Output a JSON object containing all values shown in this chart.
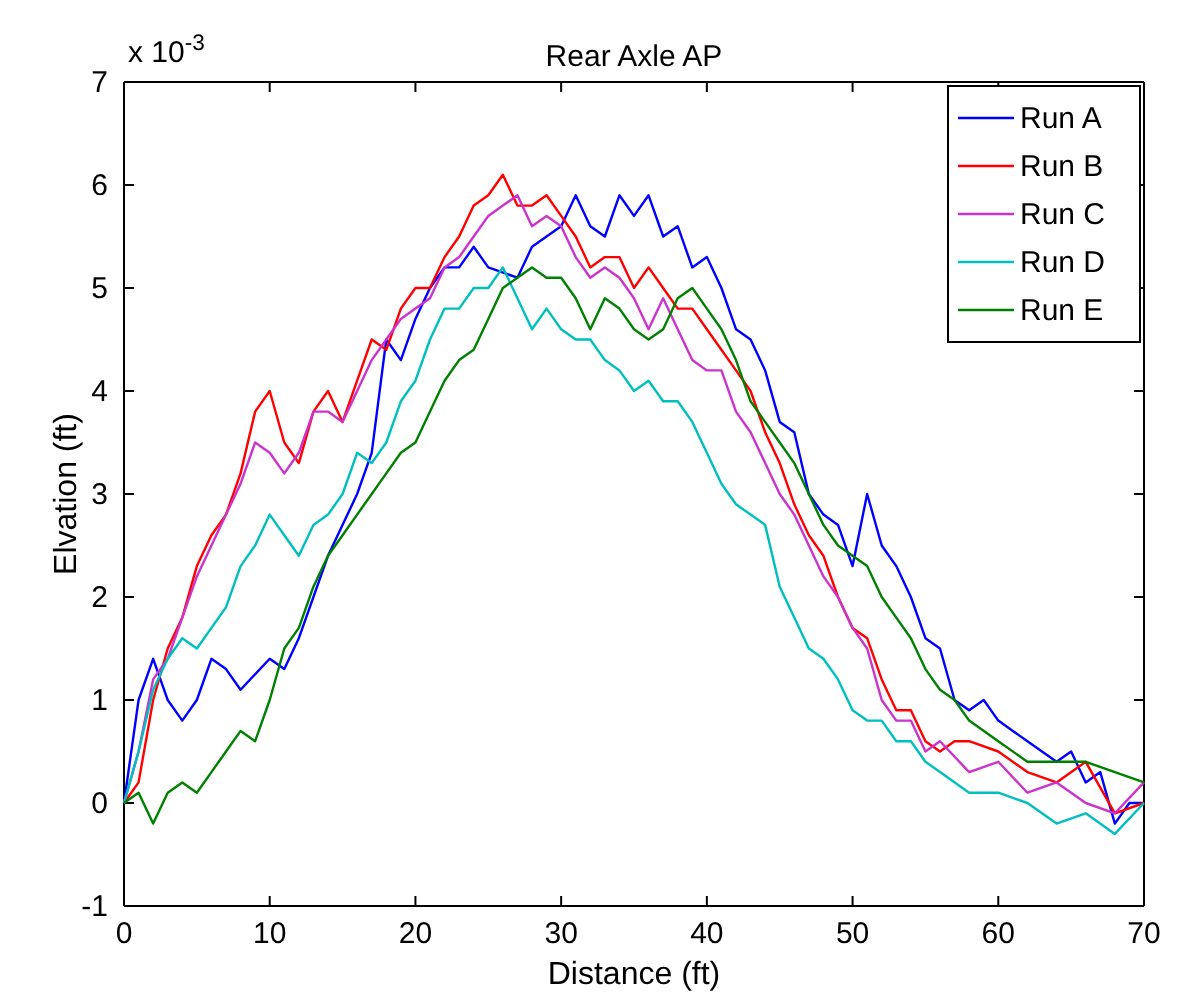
{
  "chart_data": {
    "type": "line",
    "title": "Rear Axle AP",
    "xlabel": "Distance (ft)",
    "ylabel": "Elvation (ft)",
    "annotations": [
      "x 10$^{-3}$"
    ],
    "xlim": [
      0,
      70
    ],
    "xticks": [
      0,
      10,
      20,
      30,
      40,
      50,
      60,
      70
    ],
    "ylim": [
      -1,
      7
    ],
    "yticks": [
      -1,
      0,
      1,
      2,
      3,
      4,
      5,
      6,
      7
    ],
    "grid": false,
    "legend": "top right",
    "marker": "none",
    "line_style": "solid",
    "series": [
      {
        "name": "Run A",
        "color": "#0000ff",
        "x": [
          0,
          1,
          2,
          3,
          4,
          5,
          6,
          7,
          8,
          10,
          11,
          12,
          13,
          14,
          16,
          17,
          18,
          19,
          20,
          21,
          22,
          23,
          24,
          25,
          27,
          28,
          30,
          31,
          32,
          33,
          34,
          35,
          36,
          37,
          38,
          39,
          40,
          41,
          42,
          43,
          44,
          45,
          46,
          47,
          48,
          49,
          50,
          51,
          52,
          53,
          54,
          55,
          56,
          57,
          58,
          59,
          60,
          61,
          62,
          63,
          64,
          65,
          66,
          67,
          68,
          69,
          70
        ],
        "values": [
          0,
          1.0,
          1.4,
          1.0,
          0.8,
          1.0,
          1.4,
          1.3,
          1.1,
          1.4,
          1.3,
          1.6,
          2.0,
          2.4,
          3.0,
          3.4,
          4.5,
          4.3,
          4.7,
          5.0,
          5.2,
          5.2,
          5.4,
          5.2,
          5.1,
          5.4,
          5.6,
          5.9,
          5.6,
          5.5,
          5.9,
          5.7,
          5.9,
          5.5,
          5.6,
          5.2,
          5.3,
          5.0,
          4.6,
          4.5,
          4.2,
          3.7,
          3.6,
          3.0,
          2.8,
          2.7,
          2.3,
          3.0,
          2.5,
          2.3,
          2.0,
          1.6,
          1.5,
          1.0,
          0.9,
          1.0,
          0.8,
          0.7,
          0.6,
          0.5,
          0.4,
          0.5,
          0.2,
          0.3,
          -0.2,
          0.0,
          0.0
        ]
      },
      {
        "name": "Run B",
        "color": "#ff0000",
        "x": [
          0,
          1,
          2,
          3,
          4,
          5,
          6,
          7,
          8,
          9,
          10,
          11,
          12,
          13,
          14,
          15,
          16,
          17,
          18,
          19,
          20,
          21,
          22,
          23,
          24,
          25,
          26,
          27,
          28,
          29,
          30,
          31,
          32,
          33,
          34,
          35,
          36,
          37,
          38,
          39,
          40,
          41,
          42,
          43,
          44,
          45,
          46,
          47,
          48,
          49,
          50,
          51,
          52,
          53,
          54,
          55,
          56,
          57,
          58,
          60,
          62,
          64,
          66,
          68,
          70
        ],
        "values": [
          0,
          0.2,
          1.0,
          1.5,
          1.8,
          2.3,
          2.6,
          2.8,
          3.2,
          3.8,
          4.0,
          3.5,
          3.3,
          3.8,
          4.0,
          3.7,
          4.1,
          4.5,
          4.4,
          4.8,
          5.0,
          5.0,
          5.3,
          5.5,
          5.8,
          5.9,
          6.1,
          5.8,
          5.8,
          5.9,
          5.7,
          5.5,
          5.2,
          5.3,
          5.3,
          5.0,
          5.2,
          5.0,
          4.8,
          4.8,
          4.6,
          4.4,
          4.2,
          4.0,
          3.6,
          3.3,
          2.9,
          2.6,
          2.4,
          2.0,
          1.7,
          1.6,
          1.2,
          0.9,
          0.9,
          0.6,
          0.5,
          0.6,
          0.6,
          0.5,
          0.3,
          0.2,
          0.4,
          -0.1,
          0.0
        ]
      },
      {
        "name": "Run C",
        "color": "#cc33cc",
        "x": [
          0,
          1,
          2,
          3,
          4,
          5,
          6,
          7,
          8,
          9,
          10,
          11,
          12,
          13,
          14,
          15,
          16,
          17,
          18,
          19,
          20,
          21,
          22,
          23,
          24,
          25,
          26,
          27,
          28,
          29,
          30,
          31,
          32,
          33,
          34,
          35,
          36,
          37,
          38,
          39,
          40,
          41,
          42,
          43,
          44,
          45,
          46,
          47,
          48,
          49,
          50,
          51,
          52,
          53,
          54,
          55,
          56,
          58,
          60,
          62,
          64,
          66,
          68,
          70
        ],
        "values": [
          0,
          0.5,
          1.2,
          1.4,
          1.8,
          2.2,
          2.5,
          2.8,
          3.1,
          3.5,
          3.4,
          3.2,
          3.4,
          3.8,
          3.8,
          3.7,
          4.0,
          4.3,
          4.5,
          4.7,
          4.8,
          4.9,
          5.2,
          5.3,
          5.5,
          5.7,
          5.8,
          5.9,
          5.6,
          5.7,
          5.6,
          5.3,
          5.1,
          5.2,
          5.1,
          4.9,
          4.6,
          4.9,
          4.6,
          4.3,
          4.2,
          4.2,
          3.8,
          3.6,
          3.3,
          3.0,
          2.8,
          2.5,
          2.2,
          2.0,
          1.7,
          1.5,
          1.0,
          0.8,
          0.8,
          0.5,
          0.6,
          0.3,
          0.4,
          0.1,
          0.2,
          0.0,
          -0.1,
          0.2
        ]
      },
      {
        "name": "Run D",
        "color": "#00bfbf",
        "x": [
          0,
          1,
          2,
          3,
          4,
          5,
          6,
          7,
          8,
          9,
          10,
          11,
          12,
          13,
          14,
          15,
          16,
          17,
          18,
          19,
          20,
          21,
          22,
          23,
          24,
          25,
          26,
          27,
          28,
          29,
          30,
          31,
          32,
          33,
          34,
          35,
          36,
          37,
          38,
          39,
          40,
          41,
          42,
          43,
          44,
          45,
          46,
          47,
          48,
          49,
          50,
          51,
          52,
          53,
          54,
          55,
          56,
          58,
          60,
          62,
          64,
          66,
          68,
          70
        ],
        "values": [
          0,
          0.5,
          1.1,
          1.4,
          1.6,
          1.5,
          1.7,
          1.9,
          2.3,
          2.5,
          2.8,
          2.6,
          2.4,
          2.7,
          2.8,
          3.0,
          3.4,
          3.3,
          3.5,
          3.9,
          4.1,
          4.5,
          4.8,
          4.8,
          5.0,
          5.0,
          5.2,
          4.9,
          4.6,
          4.8,
          4.6,
          4.5,
          4.5,
          4.3,
          4.2,
          4.0,
          4.1,
          3.9,
          3.9,
          3.7,
          3.4,
          3.1,
          2.9,
          2.8,
          2.7,
          2.1,
          1.8,
          1.5,
          1.4,
          1.2,
          0.9,
          0.8,
          0.8,
          0.6,
          0.6,
          0.4,
          0.3,
          0.1,
          0.1,
          0.0,
          -0.2,
          -0.1,
          -0.3,
          0.0
        ]
      },
      {
        "name": "Run E",
        "color": "#008000",
        "x": [
          0,
          1,
          2,
          3,
          4,
          5,
          6,
          7,
          8,
          9,
          10,
          11,
          12,
          13,
          14,
          15,
          16,
          17,
          18,
          19,
          20,
          21,
          22,
          23,
          24,
          25,
          26,
          27,
          28,
          29,
          30,
          31,
          32,
          33,
          34,
          35,
          36,
          37,
          38,
          39,
          40,
          41,
          42,
          43,
          44,
          45,
          46,
          47,
          48,
          49,
          50,
          51,
          52,
          53,
          54,
          55,
          56,
          57,
          58,
          60,
          62,
          64,
          66,
          68,
          70
        ],
        "values": [
          0,
          0.1,
          -0.2,
          0.1,
          0.2,
          0.1,
          0.3,
          0.5,
          0.7,
          0.6,
          1.0,
          1.5,
          1.7,
          2.1,
          2.4,
          2.6,
          2.8,
          3.0,
          3.2,
          3.4,
          3.5,
          3.8,
          4.1,
          4.3,
          4.4,
          4.7,
          5.0,
          5.1,
          5.2,
          5.1,
          5.1,
          4.9,
          4.6,
          4.9,
          4.8,
          4.6,
          4.5,
          4.6,
          4.9,
          5.0,
          4.8,
          4.6,
          4.3,
          3.9,
          3.7,
          3.5,
          3.3,
          3.0,
          2.7,
          2.5,
          2.4,
          2.3,
          2.0,
          1.8,
          1.6,
          1.3,
          1.1,
          1.0,
          0.8,
          0.6,
          0.4,
          0.4,
          0.4,
          0.3,
          0.2
        ]
      }
    ]
  }
}
